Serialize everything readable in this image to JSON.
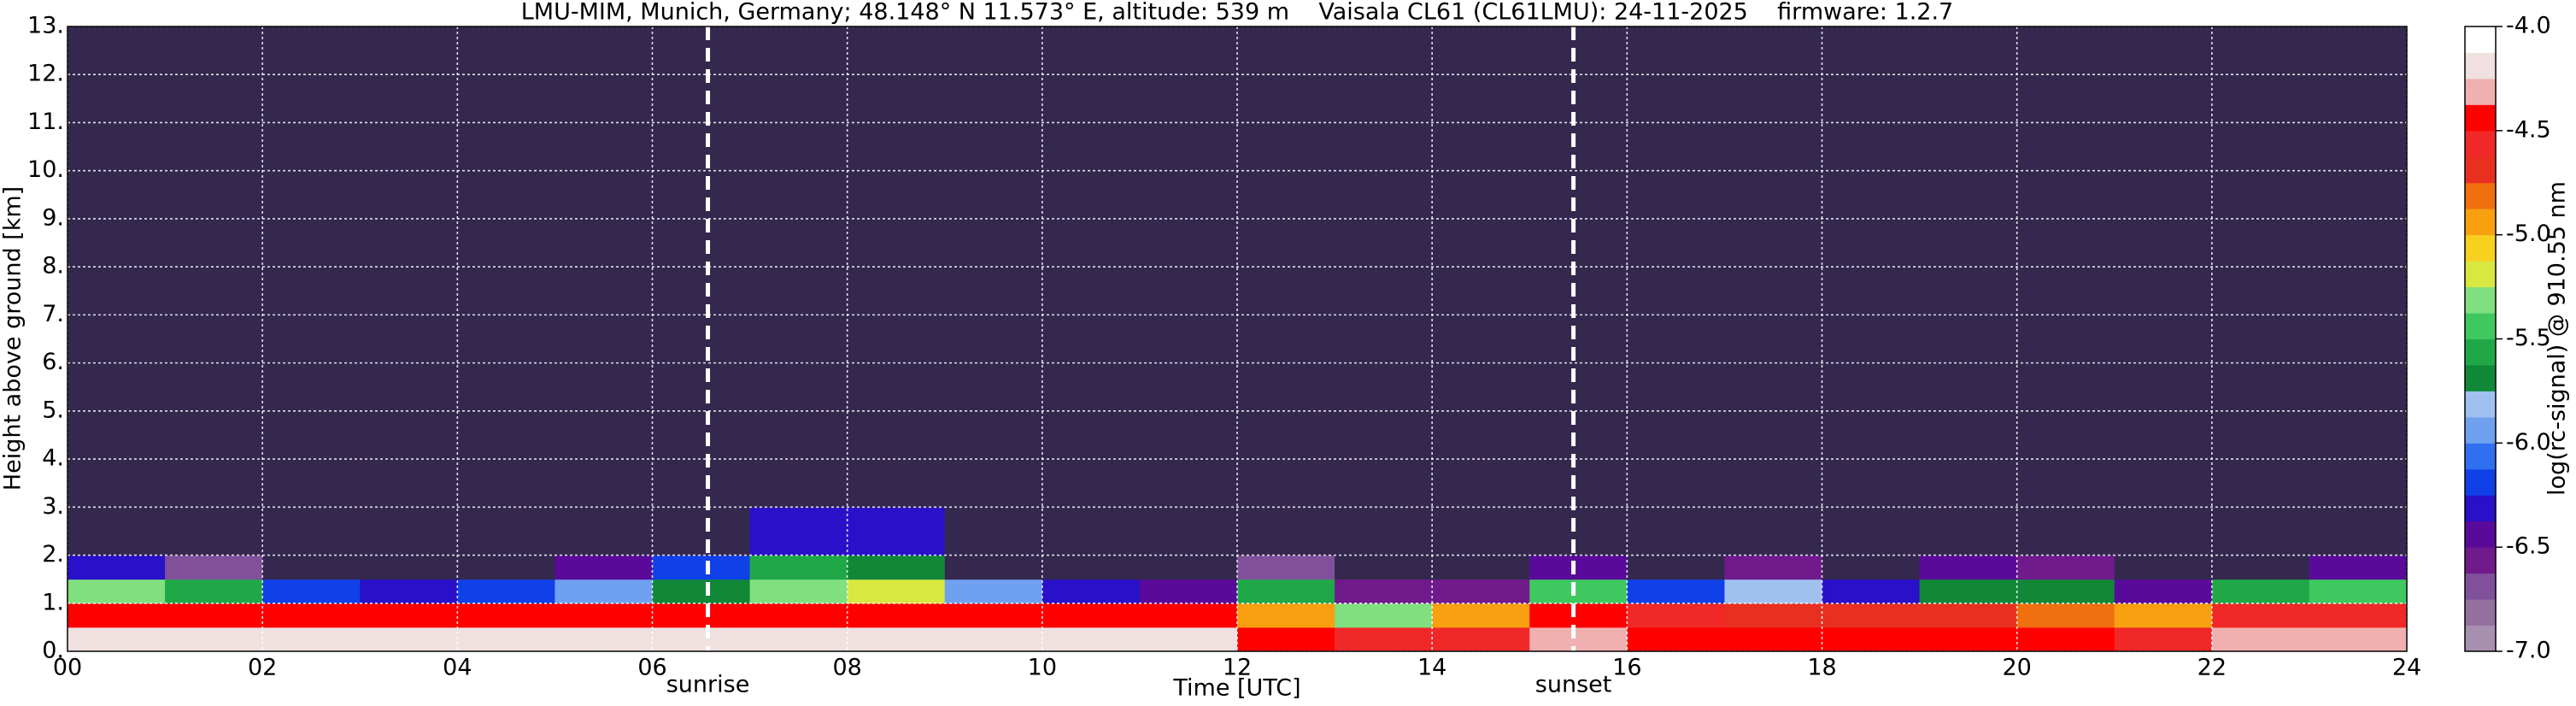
{
  "chart_data": {
    "type": "heatmap",
    "title": "LMU-MIM, Munich, Germany; 48.148° N 11.573° E, altitude: 539 m    Vaisala CL61 (CL61LMU): 24-11-2025    firmware: 1.2.7",
    "x_label": "Time [UTC]",
    "y_label": "Height above ground [km]",
    "colorbar_label": "log(rc-signal) @ 910.55 nm",
    "xlim": [
      0,
      24
    ],
    "xticks": [
      {
        "value": 0,
        "label": "00"
      },
      {
        "value": 2,
        "label": "02"
      },
      {
        "value": 4,
        "label": "04"
      },
      {
        "value": 6,
        "label": "06"
      },
      {
        "value": 8,
        "label": "08"
      },
      10,
      12,
      14,
      16,
      18,
      20,
      22,
      24
    ],
    "ylim": [
      0,
      13
    ],
    "yticks": [
      {
        "value": 0,
        "label": "0."
      },
      {
        "value": 1,
        "label": "1."
      },
      {
        "value": 2,
        "label": "2."
      },
      {
        "value": 3,
        "label": "3."
      },
      {
        "value": 4,
        "label": "4."
      },
      {
        "value": 5,
        "label": "5."
      },
      {
        "value": 6,
        "label": "6."
      },
      {
        "value": 7,
        "label": "7."
      },
      {
        "value": 8,
        "label": "8."
      },
      {
        "value": 9,
        "label": "9."
      },
      {
        "value": 10,
        "label": "10."
      },
      {
        "value": 11,
        "label": "11."
      },
      {
        "value": 12,
        "label": "12."
      },
      {
        "value": 13,
        "label": "13."
      }
    ],
    "grid": true,
    "x_edges": [
      0,
      1,
      2,
      3,
      4,
      5,
      6,
      7,
      8,
      9,
      10,
      11,
      12,
      13,
      14,
      15,
      16,
      17,
      18,
      19,
      20,
      21,
      22,
      23,
      24
    ],
    "y_edges": [
      0,
      0.5,
      1,
      1.5,
      2,
      3,
      5,
      13
    ],
    "z": [
      [
        -4.2,
        -4.2,
        -4.2,
        -4.2,
        -4.2,
        -4.2,
        -4.2,
        -4.2,
        -4.2,
        -4.2,
        -4.2,
        -4.2,
        -4.4,
        -4.6,
        -4.6,
        -4.3,
        -4.4,
        -4.5,
        -4.5,
        -4.5,
        -4.5,
        -4.6,
        -4.3,
        -4.3
      ],
      [
        -4.4,
        -4.5,
        -4.5,
        -4.5,
        -4.5,
        -4.5,
        -4.4,
        -4.4,
        -4.4,
        -4.4,
        -4.5,
        -4.5,
        -4.9,
        -5.3,
        -5.0,
        -4.5,
        -4.6,
        -4.7,
        -4.7,
        -4.7,
        -4.8,
        -5.0,
        -4.6,
        -4.6
      ],
      [
        -5.3,
        -5.6,
        -6.2,
        -6.3,
        -6.2,
        -6.0,
        -5.7,
        -5.3,
        -5.2,
        -6.0,
        -6.3,
        -6.4,
        -5.6,
        -6.6,
        -6.6,
        -5.4,
        -6.2,
        -5.8,
        -6.3,
        -5.7,
        -5.7,
        -6.5,
        -5.6,
        -5.4
      ],
      [
        -6.3,
        -6.7,
        -7.2,
        -7.2,
        -7.2,
        -6.4,
        -6.2,
        -5.6,
        -5.7,
        -7.2,
        -7.2,
        -7.2,
        -6.7,
        -7.2,
        -7.2,
        -6.5,
        -7.2,
        -6.6,
        -7.2,
        -6.5,
        -6.6,
        -7.2,
        -7.2,
        -6.4
      ],
      [
        -7.2,
        -7.2,
        -7.2,
        -7.2,
        -7.2,
        -7.2,
        -7.2,
        -6.3,
        -6.3,
        -7.2,
        -7.2,
        -7.2,
        -7.2,
        -7.2,
        -7.2,
        -7.2,
        -7.2,
        -7.2,
        -7.2,
        -7.2,
        -7.2,
        -7.2,
        -7.2,
        -7.2
      ],
      [
        -7.2,
        -7.2,
        -7.2,
        -7.2,
        -7.2,
        -7.2,
        -7.2,
        -7.2,
        -7.2,
        -7.2,
        -7.2,
        -7.2,
        -7.2,
        -7.2,
        -7.2,
        -7.2,
        -7.2,
        -7.2,
        -7.2,
        -7.2,
        -7.2,
        -7.2,
        -7.2,
        -7.2
      ],
      [
        -7.2,
        -7.2,
        -7.2,
        -7.2,
        -7.2,
        -7.2,
        -7.2,
        -7.2,
        -7.2,
        -7.2,
        -7.2,
        -7.2,
        -7.2,
        -7.2,
        -7.2,
        -7.2,
        -7.2,
        -7.2,
        -7.2,
        -7.2,
        -7.2,
        -7.2,
        -7.2,
        -7.2
      ]
    ],
    "clim": [
      -7,
      -4
    ],
    "colors": [
      "#a890b0",
      "#94709f",
      "#80509a",
      "#701a8c",
      "#5a0a9a",
      "#2a10c8",
      "#1040e8",
      "#3070f0",
      "#70a0f0",
      "#a0c0f0",
      "#108838",
      "#20a848",
      "#40c860",
      "#80e080",
      "#d8e840",
      "#f8d020",
      "#f8a010",
      "#f07010",
      "#e83020",
      "#f02828",
      "#ff0000",
      "#f0b0b0",
      "#f0e0e0",
      "#ffffff"
    ],
    "under_color": "#34284f",
    "colorbar_ticks": [
      {
        "value": -4,
        "label": "-4.0"
      },
      -4.5,
      {
        "value": -5,
        "label": "-5.0"
      },
      -5.5,
      {
        "value": -6,
        "label": "-6.0"
      },
      -6.5,
      {
        "value": -7,
        "label": "-7.0"
      }
    ],
    "vlines": [
      {
        "x": 6.57,
        "label": "sunrise"
      },
      {
        "x": 15.45,
        "label": "sunset"
      }
    ]
  }
}
